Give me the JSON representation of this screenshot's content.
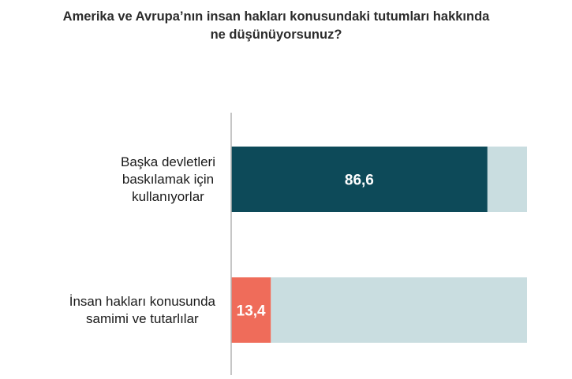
{
  "chart_data": {
    "type": "bar",
    "orientation": "horizontal",
    "stacked": true,
    "title": [
      "Amerika ve Avrupa’nın insan hakları konusundaki tutumları hakkında",
      "ne düşünüyorsunuz?"
    ],
    "categories": [
      [
        "Başka devletleri",
        "baskılamak için",
        "kullanıyorlar"
      ],
      [
        "İnsan hakları konusunda",
        "samimi ve tutarlılar"
      ]
    ],
    "values": [
      86.6,
      13.4
    ],
    "value_labels": [
      "86,6",
      "13,4"
    ],
    "xlim": [
      0,
      100
    ],
    "grid": false,
    "legend": "none",
    "colors": {
      "bars": [
        "#0d4a59",
        "#ef6c5a"
      ],
      "remainder": "#c9dde0",
      "axis": "#b3b3b3",
      "label_text": "#ffffff"
    }
  }
}
